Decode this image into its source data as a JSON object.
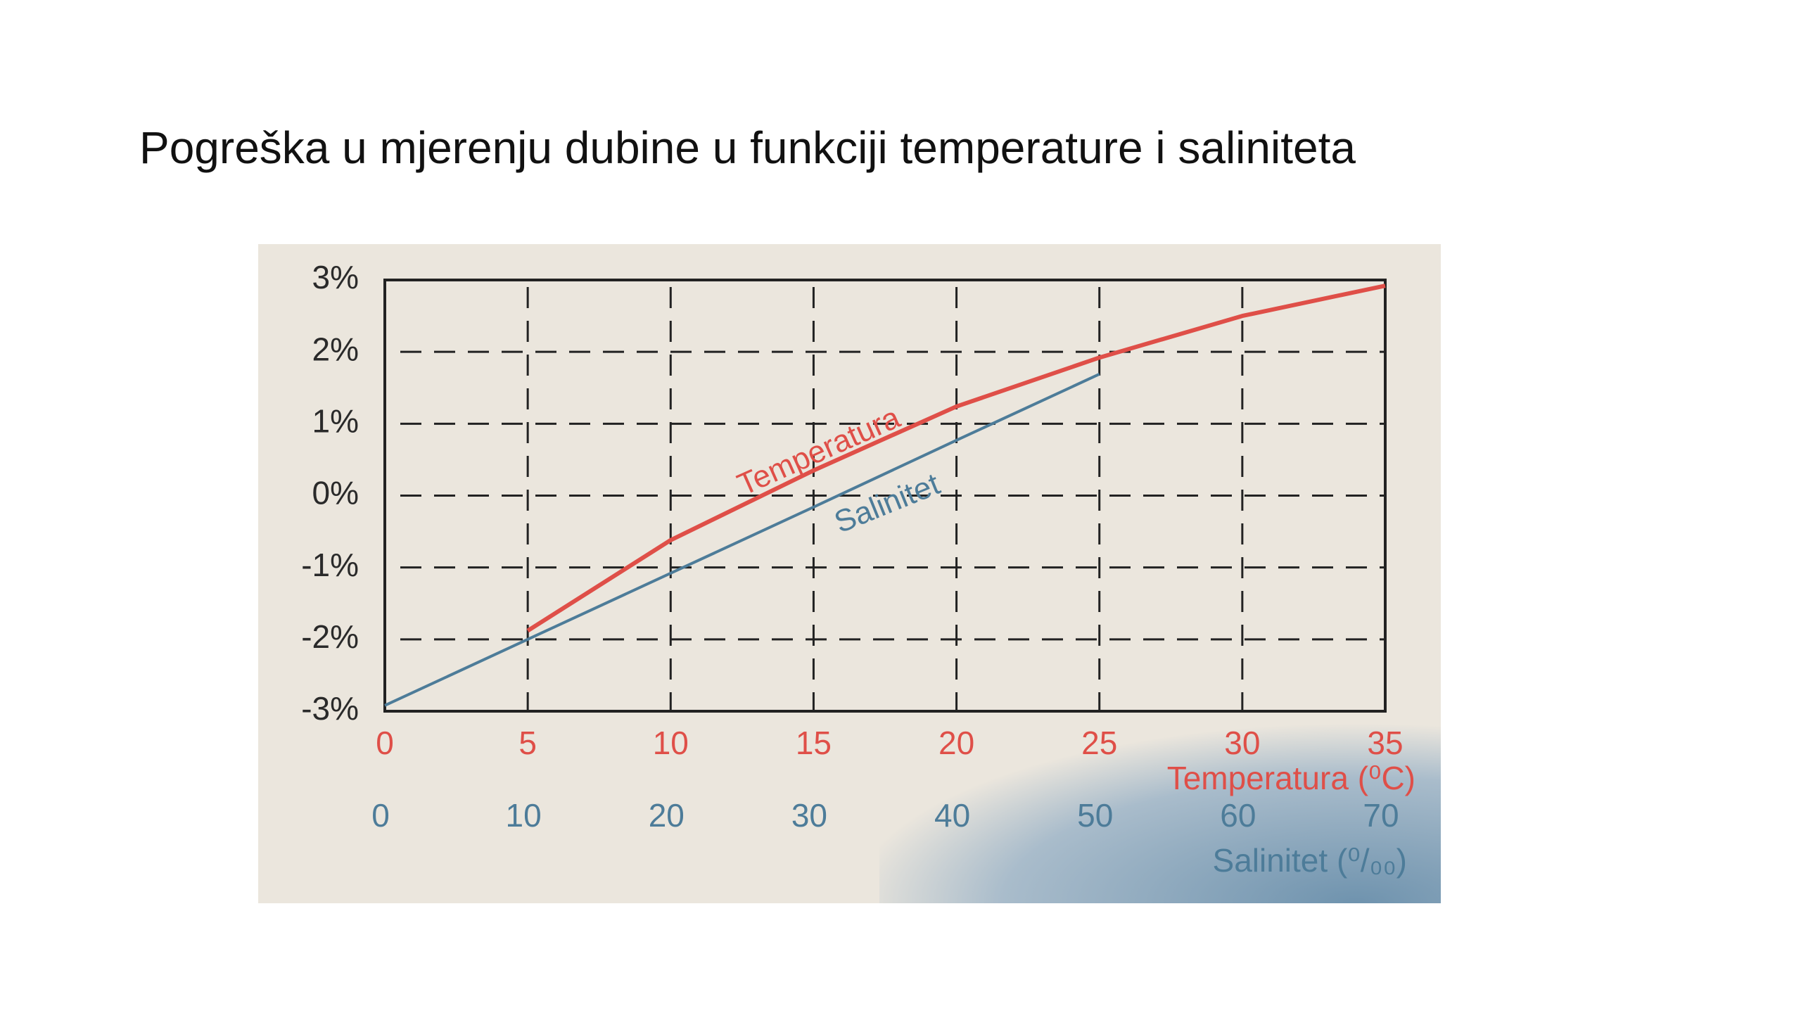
{
  "chart_data": {
    "type": "line",
    "title": "Pogreška u mjerenju dubine u funkciji temperature i saliniteta",
    "xlabel": "Temperatura (⁰C)",
    "x2label": "Salinitet (⁰/₀₀)",
    "xlim": [
      0,
      35
    ],
    "xticks": [
      0,
      5,
      10,
      15,
      20,
      25,
      30,
      35
    ],
    "x2lim": [
      0,
      70
    ],
    "x2ticks": [
      0,
      10,
      20,
      30,
      40,
      50,
      60,
      70
    ],
    "ylim": [
      -3,
      3
    ],
    "yticks": [
      {
        "value": -3,
        "label": "-3%"
      },
      {
        "value": -2,
        "label": "-2%"
      },
      {
        "value": -1,
        "label": "-1%"
      },
      {
        "value": 0,
        "label": "0%"
      },
      {
        "value": 1,
        "label": "1%"
      },
      {
        "value": 2,
        "label": "2%"
      },
      {
        "value": 3,
        "label": "3%"
      }
    ],
    "grid": true,
    "series": [
      {
        "name": "Temperatura",
        "color": "#df4f48",
        "x": [
          5,
          10,
          15,
          20,
          25,
          30,
          35
        ],
        "values": [
          -1.88,
          -0.62,
          0.35,
          1.24,
          1.92,
          2.5,
          2.92
        ]
      },
      {
        "name": "Salinitet",
        "color": "#4d7c99",
        "axis": "x2",
        "x": [
          0,
          10,
          20,
          30,
          40,
          50
        ],
        "values": [
          -2.92,
          -2.0,
          -1.08,
          -0.16,
          0.77,
          1.69
        ]
      }
    ]
  }
}
